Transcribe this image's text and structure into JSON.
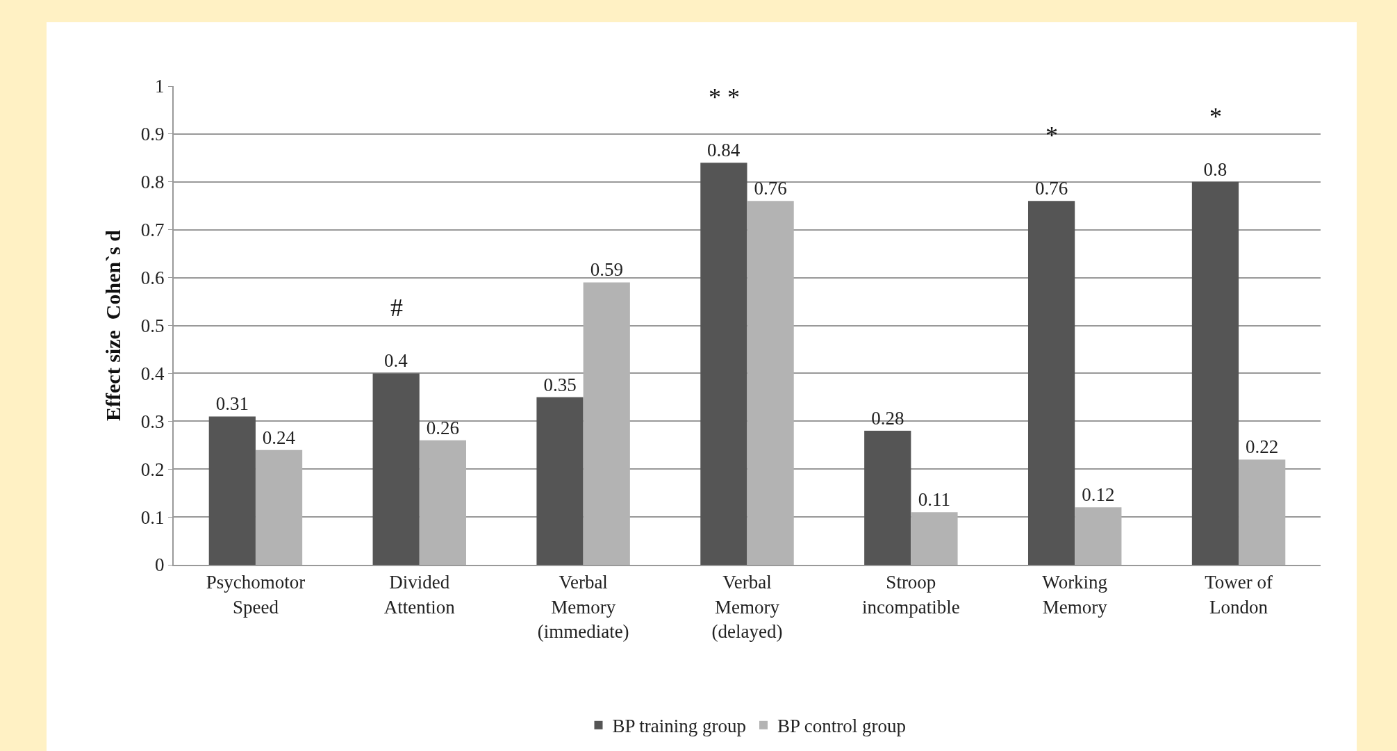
{
  "chart_data": {
    "type": "bar",
    "ylabel": "Effect size  Cohen`s d",
    "categories": [
      "Psychomotor\nSpeed",
      "Divided\nAttention",
      "Verbal\nMemory\n(immediate)",
      "Verbal\nMemory\n(delayed)",
      "Stroop\nincompatible",
      "Working\nMemory",
      "Tower of\nLondon"
    ],
    "series": [
      {
        "name": "BP training group",
        "color": "#555555",
        "values": [
          0.31,
          0.4,
          0.35,
          0.84,
          0.28,
          0.76,
          0.8
        ]
      },
      {
        "name": "BP control group",
        "color": "#b3b3b3",
        "values": [
          0.24,
          0.26,
          0.59,
          0.76,
          0.11,
          0.12,
          0.22
        ]
      }
    ],
    "ylim": [
      0,
      1
    ],
    "yticks": [
      0,
      0.1,
      0.2,
      0.3,
      0.4,
      0.5,
      0.6,
      0.7,
      0.8,
      0.9,
      1
    ],
    "grid": "y",
    "legend": "bottom",
    "data_labels": true,
    "annotations": [
      {
        "text": "#",
        "x": "Divided\nAttention",
        "y": 0.4
      },
      {
        "text": "* *",
        "x": "Verbal\nMemory\n(delayed)",
        "y": 0.84
      },
      {
        "text": "*",
        "x": "Working\nMemory",
        "y": 0.76
      },
      {
        "text": "*",
        "x": "Tower of\nLondon",
        "y": 0.8
      }
    ]
  }
}
